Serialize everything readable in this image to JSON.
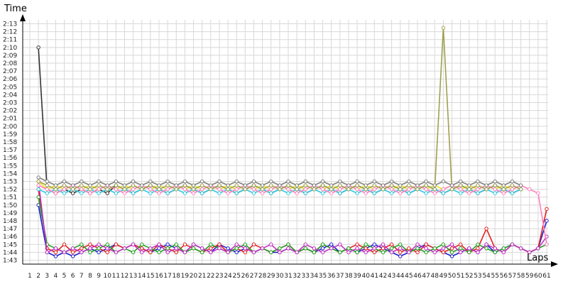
{
  "chart_data": {
    "type": "line",
    "title": "",
    "xlabel": "Laps",
    "ylabel": "Time",
    "grid": true,
    "legend": "none",
    "x_ticks": [
      "1",
      "2",
      "3",
      "4",
      "5",
      "6",
      "7",
      "8",
      "9",
      "10",
      "11",
      "12",
      "13",
      "14",
      "15",
      "16",
      "17",
      "18",
      "19",
      "20",
      "21",
      "22",
      "23",
      "24",
      "25",
      "26",
      "27",
      "28",
      "29",
      "30",
      "31",
      "32",
      "33",
      "34",
      "35",
      "36",
      "37",
      "38",
      "39",
      "40",
      "41",
      "42",
      "43",
      "44",
      "45",
      "46",
      "47",
      "48",
      "49",
      "50",
      "51",
      "52",
      "53",
      "54",
      "55",
      "56",
      "57",
      "58",
      "59",
      "60",
      "61"
    ],
    "y_ticks": [
      "1:43",
      "1:44",
      "1:45",
      "1:46",
      "1:47",
      "1:48",
      "1:49",
      "1:50",
      "1:51",
      "1:52",
      "1:53",
      "1:54",
      "1:55",
      "1:56",
      "1:57",
      "1:58",
      "1:59",
      "2:00",
      "2:01",
      "2:02",
      "2:03",
      "2:04",
      "2:05",
      "2:06",
      "2:07",
      "2:08",
      "2:09",
      "2:10",
      "2:11",
      "2:12",
      "2:13"
    ],
    "y_unit": "seconds",
    "ylim": [
      102.5,
      133.5
    ],
    "xlim": [
      1,
      61
    ],
    "series": [
      {
        "color": "#1f1fd0",
        "values": [
          null,
          110,
          104,
          103.5,
          104,
          103.5,
          104,
          104.5,
          104,
          104.5,
          105,
          104.5,
          105,
          104.5,
          104,
          104.5,
          105,
          104.5,
          104,
          105,
          104.5,
          104,
          105,
          104.5,
          104,
          104.5,
          104,
          104.5,
          104,
          104,
          104.5,
          104,
          104.5,
          104,
          104.5,
          105,
          104,
          104.5,
          104,
          104.5,
          105,
          104.5,
          104,
          103.5,
          104,
          104.5,
          105,
          104.5,
          104,
          103.5,
          104,
          104.5,
          104,
          105,
          104,
          104.5,
          105,
          104.5,
          104,
          104.5,
          108
        ]
      },
      {
        "color": "#e02020",
        "values": [
          null,
          112,
          104.5,
          104,
          105,
          104,
          104.5,
          105,
          104.5,
          104,
          105,
          104.5,
          105,
          104.5,
          104,
          105,
          104.5,
          104,
          105,
          104.5,
          104,
          104.5,
          105,
          104,
          104.5,
          104,
          105,
          104.5,
          104,
          104.5,
          105,
          104,
          104.5,
          104,
          105,
          104.5,
          104,
          104.5,
          105,
          104.5,
          104,
          104.5,
          105,
          104,
          104.5,
          104,
          105,
          104.5,
          104,
          104.5,
          105,
          104,
          104.5,
          107,
          104.5,
          104,
          105,
          104.5,
          104,
          104.5,
          109.5
        ]
      },
      {
        "color": "#20a020",
        "values": [
          null,
          111,
          105,
          104.5,
          104,
          104.5,
          105,
          104,
          104.5,
          105,
          104,
          104.5,
          104,
          105,
          104.5,
          104,
          104.5,
          105,
          104,
          104.5,
          104,
          105,
          104.5,
          104,
          104.5,
          105,
          104,
          104.5,
          104,
          104.5,
          105,
          104,
          104.5,
          104,
          105,
          104.5,
          104,
          104.5,
          104,
          105,
          104.5,
          104,
          104.5,
          105,
          104,
          104.5,
          104,
          104.5,
          105,
          104,
          104.5,
          104,
          105,
          104.5,
          104,
          104.5,
          105,
          104.5,
          104,
          104.5,
          105
        ]
      },
      {
        "color": "#c030c0",
        "values": [
          null,
          113,
          104,
          104.5,
          104,
          104.5,
          104,
          104.5,
          105,
          104.5,
          104,
          104.5,
          105,
          104,
          104.5,
          105,
          104,
          104.5,
          104,
          105,
          104.5,
          104,
          104.5,
          104,
          105,
          104.5,
          104,
          104.5,
          105,
          104,
          104.5,
          104,
          105,
          104.5,
          104,
          104.5,
          105,
          104,
          104.5,
          104,
          104.5,
          105,
          104,
          104.5,
          104,
          105,
          104.5,
          104,
          104.5,
          105,
          104,
          104.5,
          104,
          105,
          104.5,
          104,
          105,
          104.5,
          104,
          104.5,
          106
        ]
      },
      {
        "color": "#333333",
        "values": [
          null,
          130,
          112,
          111.5,
          112,
          111.5,
          112,
          111.5,
          112,
          111.5,
          112.5,
          112,
          111.5,
          112,
          112.5,
          112,
          111.5,
          112,
          112.5,
          112,
          111.5,
          112,
          112.5,
          112,
          111.5,
          112,
          112.5,
          112,
          111.5,
          112,
          112.5,
          112,
          111.5,
          112,
          112.5,
          112,
          111.5,
          112,
          112.5,
          112,
          111.5,
          112,
          112.5,
          112,
          111.5,
          112,
          112.5,
          112,
          111.5,
          112,
          112.5,
          112,
          111.5,
          112,
          112.5,
          112,
          111.5,
          112,
          null,
          null,
          null
        ]
      },
      {
        "color": "#e8e820",
        "values": [
          null,
          113,
          112,
          112.5,
          112,
          112.5,
          112,
          112.5,
          112,
          112.5,
          112,
          112.5,
          112,
          112.5,
          112,
          112.5,
          112,
          112.5,
          112,
          112.5,
          112,
          112.5,
          112,
          112.5,
          112,
          112.5,
          112,
          112.5,
          112,
          112.5,
          112,
          112.5,
          112,
          112.5,
          112,
          112.5,
          112,
          112.5,
          112,
          112.5,
          112,
          112.5,
          112,
          112.5,
          112,
          112.5,
          112,
          112.5,
          112,
          112.5,
          112,
          112.5,
          112,
          112.5,
          112,
          112.5,
          112,
          112.5,
          null,
          null,
          null
        ]
      },
      {
        "color": "#30c8e0",
        "values": [
          null,
          112,
          111.5,
          112,
          111.5,
          112,
          111.5,
          112,
          111.5,
          112,
          111.5,
          112,
          111.5,
          112,
          111.5,
          112,
          111.5,
          112,
          111.5,
          112,
          111.5,
          112,
          111.5,
          112,
          111.5,
          112,
          111.5,
          112,
          111.5,
          112,
          111.5,
          112,
          111.5,
          112,
          111.5,
          112,
          111.5,
          112,
          111.5,
          112,
          111.5,
          112,
          111.5,
          112,
          111.5,
          112,
          111.5,
          112,
          111.5,
          112,
          111.5,
          112,
          111.5,
          112,
          111.5,
          112,
          111.5,
          112,
          null,
          null,
          null
        ]
      },
      {
        "color": "#ff80c0",
        "values": [
          null,
          112.5,
          112,
          111.5,
          112,
          112.5,
          112,
          111.5,
          112,
          112.5,
          112,
          111.5,
          112,
          112.5,
          112,
          111.5,
          112,
          112.5,
          112,
          111.5,
          112,
          112.5,
          112,
          111.5,
          112,
          112.5,
          112,
          111.5,
          112,
          112.5,
          112,
          111.5,
          112,
          112.5,
          112,
          111.5,
          112,
          112.5,
          112,
          111.5,
          112,
          112.5,
          112,
          111.5,
          112,
          112.5,
          112,
          111.5,
          112,
          112.5,
          112,
          111.5,
          112,
          112.5,
          112,
          111.5,
          112,
          112.5,
          112,
          111.5,
          105
        ]
      },
      {
        "color": "#a0a050",
        "values": [
          null,
          113,
          112.5,
          112,
          112.5,
          112,
          112.5,
          112,
          112.5,
          112,
          112.5,
          112,
          112.5,
          112,
          112.5,
          112,
          112.5,
          112,
          112.5,
          112,
          112.5,
          112,
          112.5,
          112,
          112.5,
          112,
          112.5,
          112,
          112.5,
          112,
          112.5,
          112,
          112.5,
          112,
          112.5,
          112,
          112.5,
          112,
          112.5,
          112,
          112.5,
          112,
          112.5,
          112,
          112.5,
          112,
          112.5,
          112,
          132.5,
          112,
          112.5,
          112,
          112.5,
          112,
          112.5,
          112,
          112.5,
          112,
          null,
          null,
          null
        ]
      },
      {
        "color": "#808080",
        "values": [
          null,
          113.5,
          113,
          112.5,
          113,
          112.5,
          113,
          112.5,
          113,
          112.5,
          113,
          112.5,
          113,
          112.5,
          113,
          112.5,
          113,
          112.5,
          113,
          112.5,
          113,
          112.5,
          113,
          112.5,
          113,
          112.5,
          113,
          112.5,
          113,
          112.5,
          113,
          112.5,
          113,
          112.5,
          113,
          112.5,
          113,
          112.5,
          113,
          112.5,
          113,
          112.5,
          113,
          112.5,
          113,
          112.5,
          113,
          112.5,
          113,
          112.5,
          113,
          112.5,
          113,
          112.5,
          113,
          112.5,
          113,
          112.5,
          null,
          null,
          null
        ]
      }
    ]
  }
}
